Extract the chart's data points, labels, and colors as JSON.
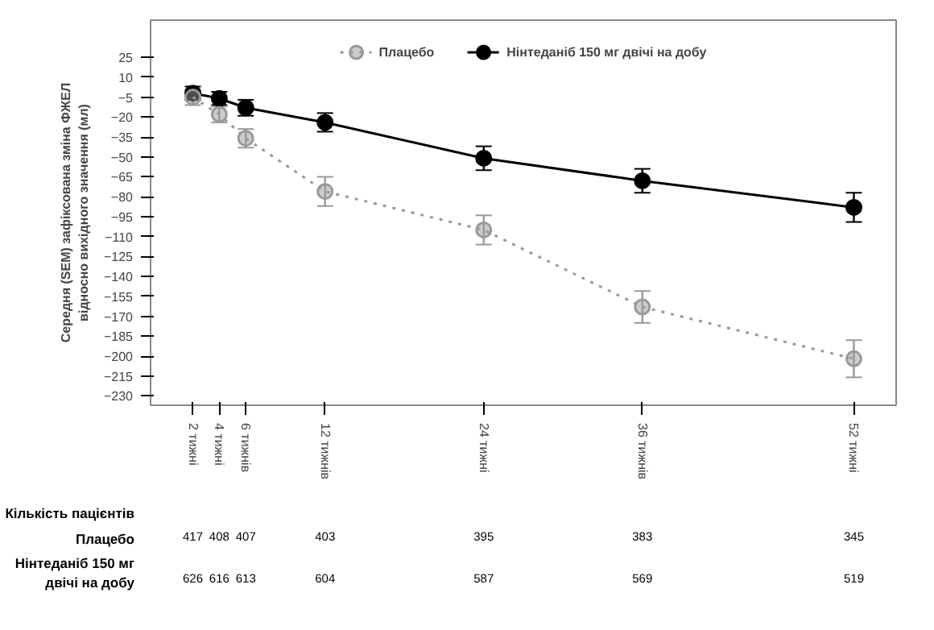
{
  "chart_data": {
    "type": "line",
    "ylabel": "Середня (SEM) зафіксована зміна ФЖЕЛ відносно вихідного значення (мл)",
    "x": [
      2,
      4,
      6,
      12,
      24,
      36,
      52
    ],
    "xlim": [
      -1.2,
      55.2
    ],
    "xticks": [
      {
        "value": 2,
        "label": "2 тижні"
      },
      {
        "value": 4,
        "label": "4 тижні"
      },
      {
        "value": 6,
        "label": "6 тижнів"
      },
      {
        "value": 12,
        "label": "12 тижнів"
      },
      {
        "value": 24,
        "label": "24 тижні"
      },
      {
        "value": 36,
        "label": "36 тижнів"
      },
      {
        "value": 52,
        "label": "52 тижні"
      }
    ],
    "ylim": [
      -237,
      53
    ],
    "yticks": [
      25,
      10,
      -5,
      -20,
      -35,
      -50,
      -65,
      -80,
      -95,
      -110,
      -125,
      -140,
      -155,
      -170,
      -185,
      -200,
      -215,
      -230
    ],
    "series": [
      {
        "name": "Плацебо",
        "color": "#999999",
        "line_style": "dotted",
        "marker": "circle",
        "values": [
          -5,
          -18,
          -36,
          -76,
          -105,
          -163,
          -202
        ],
        "errors": [
          6,
          6,
          7,
          11,
          11,
          12,
          14
        ]
      },
      {
        "name": "Нінтеданіб 150 мг двічі на добу",
        "color": "#000000",
        "line_style": "solid",
        "marker": "circle",
        "values": [
          -2,
          -6,
          -13,
          -24,
          -51,
          -68,
          -88
        ],
        "errors": [
          5,
          5,
          6,
          7,
          9,
          9,
          11
        ]
      }
    ],
    "grid": false,
    "legend": "top",
    "annotations": [
      "Кількість пацієнтів",
      "Плацебо",
      "417",
      "408",
      "407",
      "403",
      "395",
      "383",
      "345",
      "Нінтеданіб 150 мг двічі на добу",
      "626",
      "616",
      "613",
      "604",
      "587",
      "569",
      "519"
    ]
  }
}
